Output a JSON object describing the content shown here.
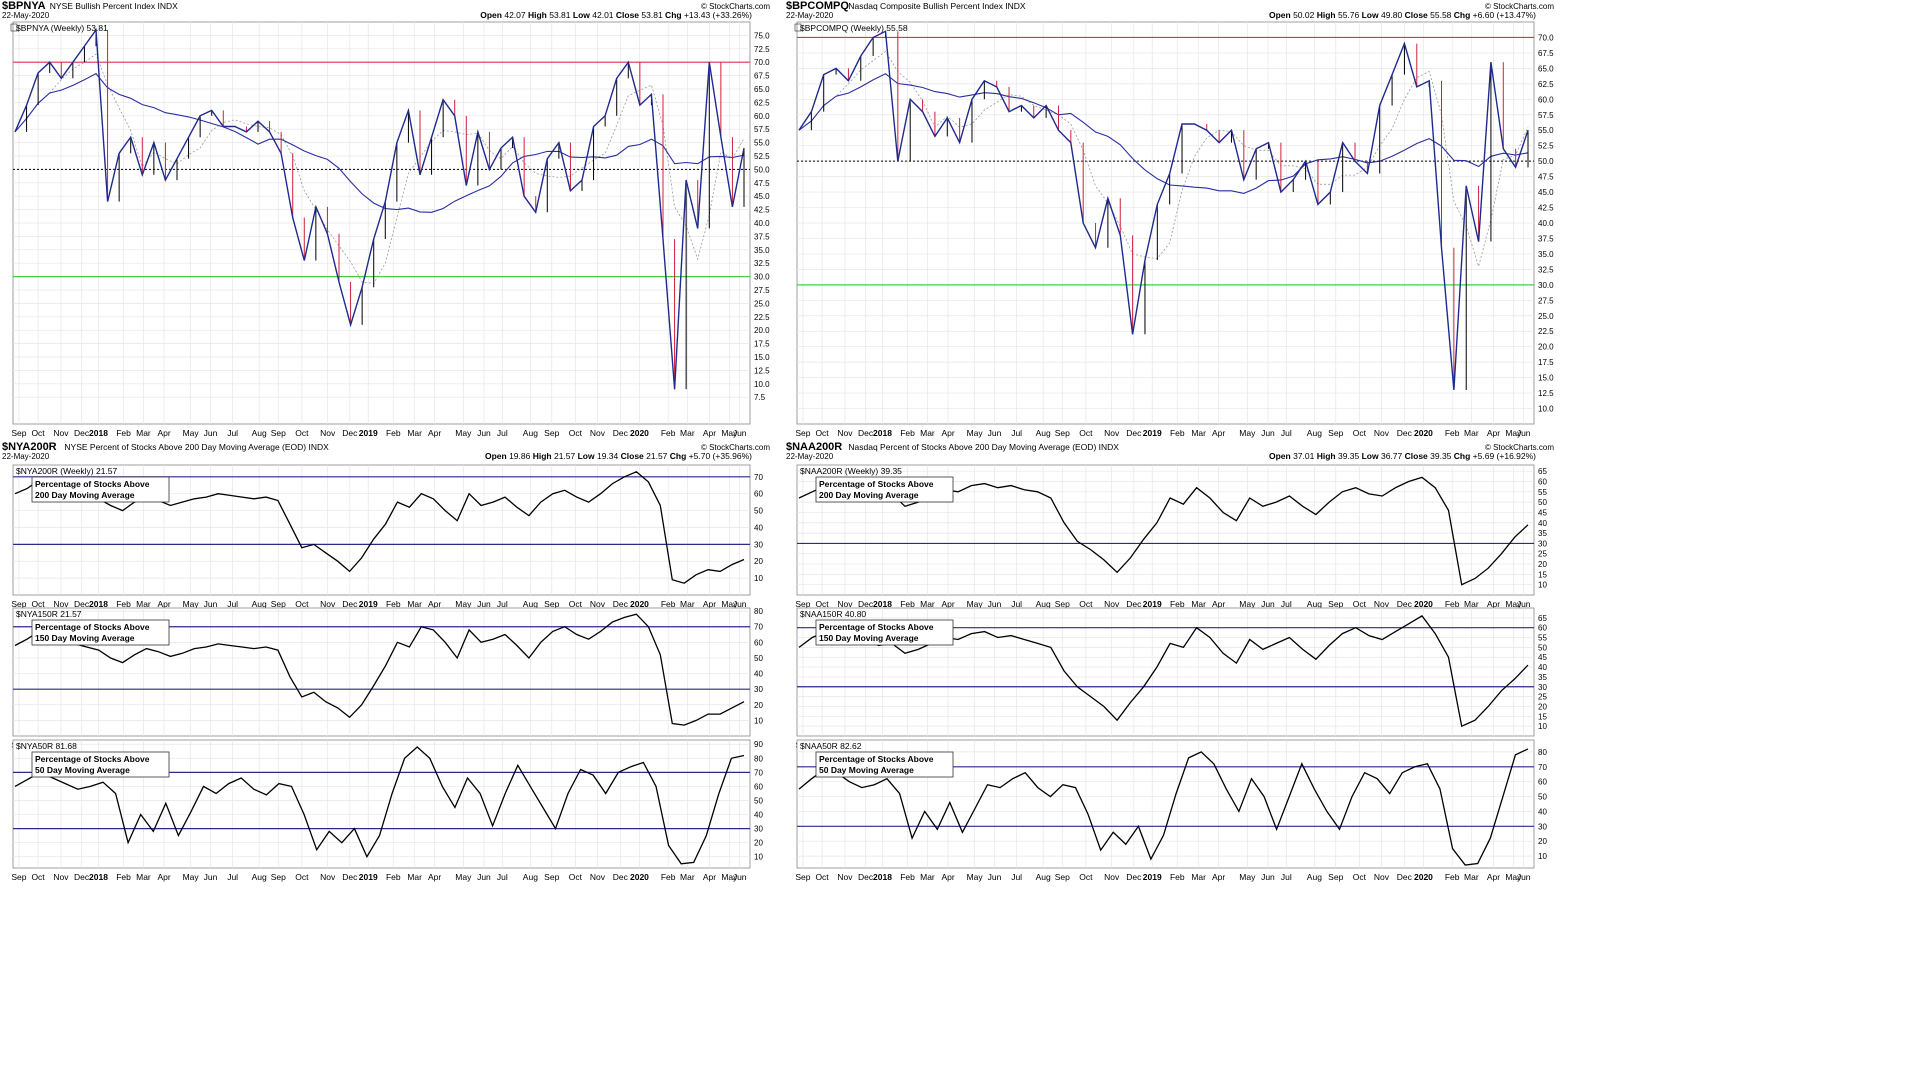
{
  "chart_data": [
    {
      "type": "line",
      "id": "bpnya",
      "symbol": "$BPNYA",
      "description": "NYSE Bullish Percent Index",
      "exchange": "INDX",
      "date": "22-May-2020",
      "credit": "© StockCharts.com",
      "ohlc": {
        "open": "42.07",
        "high": "53.81",
        "low": "42.01",
        "close": "53.81",
        "chg": "+13.43 (+33.26%)"
      },
      "legend": "$BPNYA (Weekly) 53.81",
      "ylim": [
        2.5,
        77.5
      ],
      "yticks": [
        "7.5",
        "10.0",
        "12.5",
        "15.0",
        "17.5",
        "20.0",
        "22.5",
        "25.0",
        "27.5",
        "30.0",
        "32.5",
        "35.0",
        "37.5",
        "40.0",
        "42.5",
        "45.0",
        "47.5",
        "50.0",
        "52.5",
        "55.0",
        "57.5",
        "60.0",
        "62.5",
        "65.0",
        "67.5",
        "70.0",
        "72.5",
        "75.0"
      ],
      "hlines": [
        {
          "y": 70,
          "color": "#e03050"
        },
        {
          "y": 30,
          "color": "#40d040"
        },
        {
          "y": 50,
          "color": "#000000",
          "dotted": true
        }
      ],
      "series": [
        {
          "values": [
            57,
            62,
            68,
            70,
            67,
            70,
            73,
            76,
            44,
            53,
            56,
            49,
            55,
            48,
            52,
            56,
            60,
            61,
            58,
            58,
            57,
            59,
            57,
            53,
            41,
            33,
            43,
            38,
            29,
            21,
            28,
            37,
            44,
            55,
            61,
            49,
            56,
            63,
            60,
            47,
            57,
            50,
            54,
            56,
            45,
            42,
            52,
            55,
            46,
            48,
            58,
            60,
            67,
            70,
            62,
            64,
            37,
            9,
            48,
            39,
            70,
            56,
            43,
            54
          ]
        }
      ],
      "x_labels": [
        "Sep",
        "Oct",
        "Nov",
        "Dec",
        "2018",
        "Feb",
        "Mar",
        "Apr",
        "May",
        "Jun",
        "Jul",
        "Aug",
        "Sep",
        "Oct",
        "Nov",
        "Dec",
        "2019",
        "Feb",
        "Mar",
        "Apr",
        "May",
        "Jun",
        "Jul",
        "Aug",
        "Sep",
        "Oct",
        "Nov",
        "Dec",
        "2020",
        "Feb",
        "Mar",
        "Apr",
        "May",
        "Jun"
      ]
    },
    {
      "type": "line",
      "id": "bpcompq",
      "symbol": "$BPCOMPQ",
      "description": "Nasdaq Composite Bullish Percent Index",
      "exchange": "INDX",
      "date": "22-May-2020",
      "credit": "© StockCharts.com",
      "ohlc": {
        "open": "50.02",
        "high": "55.76",
        "low": "49.80",
        "close": "55.58",
        "chg": "+6.60 (+13.47%)"
      },
      "legend": "$BPCOMPQ (Weekly) 55.58",
      "ylim": [
        7.5,
        72.5
      ],
      "yticks": [
        "10.0",
        "12.5",
        "15.0",
        "17.5",
        "20.0",
        "22.5",
        "25.0",
        "27.5",
        "30.0",
        "32.5",
        "35.0",
        "37.5",
        "40.0",
        "42.5",
        "45.0",
        "47.5",
        "50.0",
        "52.5",
        "55.0",
        "57.5",
        "60.0",
        "62.5",
        "65.0",
        "67.5",
        "70.0"
      ],
      "hlines": [
        {
          "y": 70,
          "color": "#e03050"
        },
        {
          "y": 30,
          "color": "#40d040"
        },
        {
          "y": 50,
          "color": "#000000",
          "dotted": true
        }
      ],
      "series": [
        {
          "values": [
            55,
            58,
            64,
            65,
            63,
            67,
            70,
            71,
            50,
            60,
            58,
            54,
            57,
            53,
            60,
            63,
            62,
            58,
            59,
            57,
            59,
            55,
            53,
            40,
            36,
            44,
            38,
            22,
            34,
            43,
            48,
            56,
            56,
            55,
            53,
            55,
            47,
            52,
            53,
            45,
            47,
            50,
            43,
            45,
            53,
            50,
            48,
            59,
            64,
            69,
            62,
            63,
            36,
            13,
            46,
            37,
            66,
            52,
            49,
            55
          ]
        }
      ],
      "x_labels": [
        "Sep",
        "Oct",
        "Nov",
        "Dec",
        "2018",
        "Feb",
        "Mar",
        "Apr",
        "May",
        "Jun",
        "Jul",
        "Aug",
        "Sep",
        "Oct",
        "Nov",
        "Dec",
        "2019",
        "Feb",
        "Mar",
        "Apr",
        "May",
        "Jun",
        "Jul",
        "Aug",
        "Sep",
        "Oct",
        "Nov",
        "Dec",
        "2020",
        "Feb",
        "Mar",
        "Apr",
        "May",
        "Jun"
      ]
    },
    {
      "type": "line",
      "id": "nya200r",
      "symbol": "$NYA200R",
      "description": "NYSE Percent of Stocks Above 200 Day Moving Average (EOD)",
      "exchange": "INDX",
      "date": "22-May-2020",
      "credit": "© StockCharts.com",
      "ohlc": {
        "open": "19.86",
        "high": "21.57",
        "low": "19.34",
        "close": "21.57",
        "chg": "+5.70 (+35.96%)"
      },
      "legend": "$NYA200R (Weekly) 21.57",
      "box": [
        "Percentage of Stocks Above",
        "200 Day Moving Average"
      ],
      "ylim": [
        0,
        77
      ],
      "yticks": [
        "10",
        "20",
        "30",
        "40",
        "50",
        "60",
        "70"
      ],
      "hlines": [
        {
          "y": 70,
          "color": "#2a2a8a"
        },
        {
          "y": 30,
          "color": "#2a2a8a"
        }
      ],
      "series": [
        {
          "values": [
            60,
            63,
            68,
            66,
            64,
            61,
            59,
            57,
            53,
            50,
            55,
            58,
            56,
            53,
            55,
            57,
            58,
            60,
            59,
            58,
            57,
            58,
            56,
            42,
            28,
            30,
            25,
            20,
            14,
            22,
            33,
            42,
            55,
            52,
            60,
            57,
            50,
            44,
            60,
            53,
            55,
            58,
            52,
            47,
            55,
            60,
            62,
            58,
            55,
            60,
            66,
            70,
            73,
            67,
            53,
            9,
            7,
            12,
            15,
            14,
            18,
            21
          ]
        }
      ],
      "x_labels": [
        "Sep",
        "Oct",
        "Nov",
        "Dec",
        "2018",
        "Feb",
        "Mar",
        "Apr",
        "May",
        "Jun",
        "Jul",
        "Aug",
        "Sep",
        "Oct",
        "Nov",
        "Dec",
        "2019",
        "Feb",
        "Mar",
        "Apr",
        "May",
        "Jun",
        "Jul",
        "Aug",
        "Sep",
        "Oct",
        "Nov",
        "Dec",
        "2020",
        "Feb",
        "Mar",
        "Apr",
        "May",
        "Jun"
      ]
    },
    {
      "type": "line",
      "id": "naa200r",
      "symbol": "$NAA200R",
      "description": "Nasdaq Percent of Stocks Above 200 Day Moving Average (EOD)",
      "exchange": "INDX",
      "date": "22-May-2020",
      "credit": "© StockCharts.com",
      "ohlc": {
        "open": "37.01",
        "high": "39.35",
        "low": "36.77",
        "close": "39.35",
        "chg": "+5.69 (+16.92%)"
      },
      "legend": "$NAA200R (Weekly) 39.35",
      "box": [
        "Percentage of Stocks Above",
        "200 Day Moving Average"
      ],
      "ylim": [
        5,
        68
      ],
      "yticks": [
        "10",
        "15",
        "20",
        "25",
        "30",
        "35",
        "40",
        "45",
        "50",
        "55",
        "60",
        "65"
      ],
      "hlines": [
        {
          "y": 30,
          "color": "#2a2a8a"
        }
      ],
      "series": [
        {
          "values": [
            52,
            55,
            58,
            56,
            54,
            55,
            52,
            54,
            48,
            50,
            53,
            56,
            55,
            58,
            59,
            57,
            58,
            56,
            55,
            52,
            40,
            31,
            27,
            22,
            16,
            23,
            32,
            40,
            52,
            49,
            57,
            52,
            45,
            41,
            52,
            48,
            50,
            53,
            48,
            44,
            50,
            55,
            57,
            54,
            53,
            57,
            60,
            62,
            57,
            46,
            10,
            13,
            18,
            25,
            33,
            39
          ]
        }
      ],
      "x_labels": [
        "Sep",
        "Oct",
        "Nov",
        "Dec",
        "2018",
        "Feb",
        "Mar",
        "Apr",
        "May",
        "Jun",
        "Jul",
        "Aug",
        "Sep",
        "Oct",
        "Nov",
        "Dec",
        "2019",
        "Feb",
        "Mar",
        "Apr",
        "May",
        "Jun",
        "Jul",
        "Aug",
        "Sep",
        "Oct",
        "Nov",
        "Dec",
        "2020",
        "Feb",
        "Mar",
        "Apr",
        "May",
        "Jun"
      ]
    },
    {
      "type": "line",
      "id": "nya150r",
      "symbol": "$NYA150R",
      "legend": "$NYA150R 21.57",
      "box": [
        "Percentage of Stocks Above",
        "150 Day Moving Average"
      ],
      "ylim": [
        0,
        82
      ],
      "yticks": [
        "10",
        "20",
        "30",
        "40",
        "50",
        "60",
        "70",
        "80"
      ],
      "hlines": [
        {
          "y": 70,
          "color": "#2a2a8a"
        },
        {
          "y": 30,
          "color": "#2a2a8a"
        }
      ],
      "series": [
        {
          "values": [
            58,
            62,
            67,
            64,
            62,
            59,
            57,
            55,
            50,
            47,
            52,
            56,
            54,
            51,
            53,
            56,
            57,
            59,
            58,
            57,
            56,
            57,
            55,
            38,
            25,
            28,
            22,
            18,
            12,
            20,
            32,
            45,
            60,
            57,
            70,
            68,
            60,
            50,
            68,
            60,
            62,
            65,
            58,
            50,
            60,
            67,
            70,
            65,
            62,
            67,
            73,
            76,
            78,
            70,
            52,
            8,
            7,
            10,
            14,
            14,
            18,
            22
          ]
        }
      ],
      "x_labels": [
        "Sep",
        "Oct",
        "Nov",
        "Dec",
        "2018",
        "Feb",
        "Mar",
        "Apr",
        "May",
        "Jun",
        "Jul",
        "Aug",
        "Sep",
        "Oct",
        "Nov",
        "Dec",
        "2019",
        "Feb",
        "Mar",
        "Apr",
        "May",
        "Jun",
        "Jul",
        "Aug",
        "Sep",
        "Oct",
        "Nov",
        "Dec",
        "2020",
        "Feb",
        "Mar",
        "Apr",
        "May",
        "Jun"
      ]
    },
    {
      "type": "line",
      "id": "naa150r",
      "symbol": "$NAA150R",
      "legend": "$NAA150R 40.80",
      "box": [
        "Percentage of Stocks Above",
        "150 Day Moving Average"
      ],
      "ylim": [
        5,
        70
      ],
      "yticks": [
        "10",
        "15",
        "20",
        "25",
        "30",
        "35",
        "40",
        "45",
        "50",
        "55",
        "60",
        "65"
      ],
      "hlines": [
        {
          "y": 60,
          "color": "#2a2a8a"
        },
        {
          "y": 30,
          "color": "#2a2a8a"
        }
      ],
      "series": [
        {
          "values": [
            50,
            55,
            58,
            55,
            53,
            54,
            51,
            52,
            47,
            49,
            52,
            55,
            54,
            57,
            58,
            55,
            56,
            54,
            52,
            50,
            38,
            30,
            25,
            20,
            13,
            22,
            30,
            40,
            52,
            50,
            60,
            55,
            47,
            42,
            54,
            49,
            52,
            55,
            49,
            44,
            51,
            57,
            60,
            56,
            54,
            58,
            62,
            66,
            57,
            45,
            10,
            13,
            20,
            28,
            34,
            41
          ]
        }
      ],
      "x_labels": [
        "Sep",
        "Oct",
        "Nov",
        "Dec",
        "2018",
        "Feb",
        "Mar",
        "Apr",
        "May",
        "Jun",
        "Jul",
        "Aug",
        "Sep",
        "Oct",
        "Nov",
        "Dec",
        "2019",
        "Feb",
        "Mar",
        "Apr",
        "May",
        "Jun",
        "Jul",
        "Aug",
        "Sep",
        "Oct",
        "Nov",
        "Dec",
        "2020",
        "Feb",
        "Mar",
        "Apr",
        "May",
        "Jun"
      ]
    },
    {
      "type": "line",
      "id": "nya50r",
      "symbol": "$NYA50R",
      "legend": "$NYA50R 81.68",
      "box": [
        "Percentage of Stocks Above",
        "50 Day Moving Average"
      ],
      "ylim": [
        2,
        93
      ],
      "yticks": [
        "10",
        "20",
        "30",
        "40",
        "50",
        "60",
        "70",
        "80",
        "90"
      ],
      "hlines": [
        {
          "y": 70,
          "color": "#2a2a8a"
        },
        {
          "y": 30,
          "color": "#2a2a8a"
        }
      ],
      "series": [
        {
          "values": [
            60,
            65,
            70,
            66,
            62,
            58,
            60,
            63,
            55,
            20,
            40,
            28,
            48,
            25,
            42,
            60,
            55,
            62,
            66,
            58,
            54,
            62,
            60,
            40,
            15,
            28,
            20,
            30,
            10,
            25,
            55,
            80,
            88,
            80,
            60,
            45,
            66,
            55,
            32,
            55,
            75,
            60,
            45,
            30,
            55,
            72,
            68,
            55,
            70,
            74,
            77,
            60,
            18,
            5,
            6,
            25,
            55,
            80,
            82
          ]
        }
      ],
      "x_labels": [
        "Sep",
        "Oct",
        "Nov",
        "Dec",
        "2018",
        "Feb",
        "Mar",
        "Apr",
        "May",
        "Jun",
        "Jul",
        "Aug",
        "Sep",
        "Oct",
        "Nov",
        "Dec",
        "2019",
        "Feb",
        "Mar",
        "Apr",
        "May",
        "Jun",
        "Jul",
        "Aug",
        "Sep",
        "Oct",
        "Nov",
        "Dec",
        "2020",
        "Feb",
        "Mar",
        "Apr",
        "May",
        "Jun"
      ]
    },
    {
      "type": "line",
      "id": "naa50r",
      "symbol": "$NAA50R",
      "legend": "$NAA50R 82.62",
      "box": [
        "Percentage of Stocks Above",
        "50 Day Moving Average"
      ],
      "ylim": [
        2,
        88
      ],
      "yticks": [
        "10",
        "20",
        "30",
        "40",
        "50",
        "60",
        "70",
        "80"
      ],
      "hlines": [
        {
          "y": 70,
          "color": "#2a2a8a"
        },
        {
          "y": 30,
          "color": "#2a2a8a"
        }
      ],
      "series": [
        {
          "values": [
            55,
            62,
            68,
            66,
            60,
            56,
            58,
            62,
            52,
            22,
            40,
            28,
            46,
            26,
            42,
            58,
            56,
            62,
            66,
            56,
            50,
            58,
            56,
            38,
            14,
            26,
            18,
            30,
            8,
            24,
            52,
            76,
            80,
            72,
            55,
            40,
            62,
            50,
            28,
            50,
            72,
            55,
            40,
            28,
            50,
            66,
            62,
            52,
            66,
            70,
            72,
            55,
            15,
            4,
            5,
            22,
            50,
            78,
            82
          ]
        }
      ],
      "x_labels": [
        "Sep",
        "Oct",
        "Nov",
        "Dec",
        "2018",
        "Feb",
        "Mar",
        "Apr",
        "May",
        "Jun",
        "Jul",
        "Aug",
        "Sep",
        "Oct",
        "Nov",
        "Dec",
        "2019",
        "Feb",
        "Mar",
        "Apr",
        "May",
        "Jun",
        "Jul",
        "Aug",
        "Sep",
        "Oct",
        "Nov",
        "Dec",
        "2020",
        "Feb",
        "Mar",
        "Apr",
        "May",
        "Jun"
      ]
    }
  ]
}
